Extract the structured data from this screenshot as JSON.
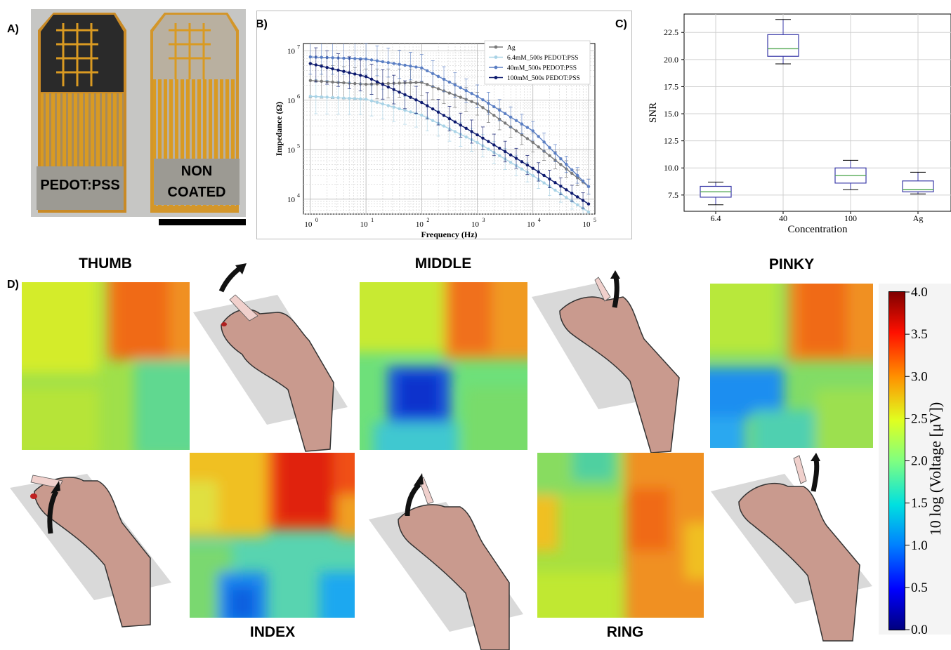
{
  "panels": {
    "a": "A)",
    "b": "B)",
    "c": "C)",
    "d": "D)"
  },
  "photo": {
    "left_label": "PEDOT:PSS",
    "right_label_line1": "NON",
    "right_label_line2": "COATED"
  },
  "impedance_chart": {
    "type": "line",
    "xlabel": "Frequency (Hz)",
    "ylabel": "Impedance (Ω)",
    "xscale": "log",
    "yscale": "log",
    "xlim": [
      0.75,
      130000
    ],
    "ylim": [
      5000,
      14000000
    ],
    "grid": true,
    "legend_position": "top-right",
    "x_ticks": [
      {
        "value": 1,
        "base": "10",
        "exp": "0"
      },
      {
        "value": 10,
        "base": "10",
        "exp": "1"
      },
      {
        "value": 100,
        "base": "10",
        "exp": "2"
      },
      {
        "value": 1000,
        "base": "10",
        "exp": "3"
      },
      {
        "value": 10000,
        "base": "10",
        "exp": "4"
      },
      {
        "value": 100000,
        "base": "10",
        "exp": "5"
      }
    ],
    "y_ticks": [
      {
        "value": 10000,
        "base": "10",
        "exp": "4"
      },
      {
        "value": 100000,
        "base": "10",
        "exp": "5"
      },
      {
        "value": 1000000,
        "base": "10",
        "exp": "6"
      },
      {
        "value": 10000000,
        "base": "10",
        "exp": "7"
      }
    ],
    "series": [
      {
        "name": "Ag",
        "color": "#7a7a7a",
        "x": [
          1,
          10,
          100,
          1000,
          10000,
          100000
        ],
        "y": [
          2500000,
          2100000,
          2300000,
          850000,
          140000,
          18000
        ]
      },
      {
        "name": "6.4mM_500s PEDOT:PSS",
        "color": "#a9d3e6",
        "x": [
          1,
          10,
          100,
          1000,
          10000,
          100000
        ],
        "y": [
          1200000,
          1050000,
          500000,
          140000,
          30000,
          5500
        ]
      },
      {
        "name": "40mM_500s PEDOT:PSS",
        "color": "#5b7fc4",
        "x": [
          1,
          10,
          100,
          1000,
          10000,
          100000
        ],
        "y": [
          7500000,
          6800000,
          4500000,
          1200000,
          240000,
          18000
        ]
      },
      {
        "name": "100mM_500s PEDOT:PSS",
        "color": "#0d1a6e",
        "x": [
          1,
          10,
          100,
          1000,
          10000,
          100000
        ],
        "y": [
          5500000,
          3000000,
          900000,
          200000,
          42000,
          8000
        ]
      }
    ]
  },
  "snr_chart": {
    "type": "box",
    "xlabel": "Concentration",
    "ylabel": "SNR",
    "ylim": [
      6.0,
      24.2
    ],
    "y_ticks": [
      7.5,
      10.0,
      12.5,
      15.0,
      17.5,
      20.0,
      22.5
    ],
    "y_tick_labels": [
      "7.5",
      "10.0",
      "12.5",
      "15.0",
      "17.5",
      "20.0",
      "22.5"
    ],
    "categories": [
      "6.4",
      "40",
      "100",
      "Ag"
    ],
    "boxes": [
      {
        "whisker_low": 6.6,
        "q1": 7.3,
        "median": 7.8,
        "q3": 8.3,
        "whisker_high": 8.7
      },
      {
        "whisker_low": 19.6,
        "q1": 20.3,
        "median": 21.0,
        "q3": 22.3,
        "whisker_high": 23.7
      },
      {
        "whisker_low": 8.0,
        "q1": 8.6,
        "median": 9.3,
        "q3": 10.0,
        "whisker_high": 10.7
      },
      {
        "whisker_low": 7.6,
        "q1": 7.8,
        "median": 8.0,
        "q3": 8.8,
        "whisker_high": 9.6
      }
    ],
    "box_color": "#3a3aa8",
    "median_color": "#55aa55"
  },
  "fingers": {
    "thumb": "THUMB",
    "middle": "MIDDLE",
    "pinky": "PINKY",
    "index": "INDEX",
    "ring": "RING"
  },
  "colorbar": {
    "label": "10 log (Voltage [μV])",
    "min": 0.0,
    "max": 4.0,
    "ticks": [
      "4.0",
      "3.5",
      "3.0",
      "2.5",
      "2.0",
      "1.5",
      "1.0",
      "0.5",
      "0.0"
    ]
  }
}
